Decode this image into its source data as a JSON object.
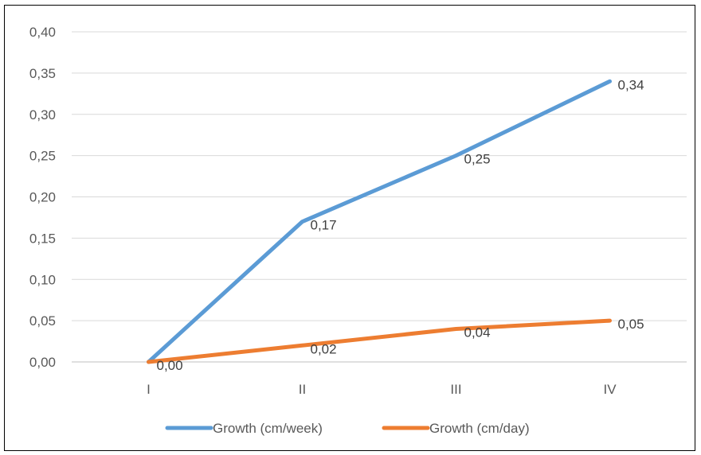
{
  "chart_data": {
    "type": "line",
    "title": "",
    "xlabel": "",
    "ylabel": "",
    "categories": [
      "I",
      "II",
      "III",
      "IV"
    ],
    "ylim": [
      0,
      0.4
    ],
    "yticks": [
      0.0,
      0.05,
      0.1,
      0.15,
      0.2,
      0.25,
      0.3,
      0.35,
      0.4
    ],
    "ytick_labels": [
      "0,00",
      "0,05",
      "0,10",
      "0,15",
      "0,20",
      "0,25",
      "0,30",
      "0,35",
      "0,40"
    ],
    "grid": true,
    "legend_position": "bottom",
    "series": [
      {
        "name": "Growth (cm/week)",
        "values": [
          0.0,
          0.17,
          0.25,
          0.34
        ],
        "labels": [
          "",
          "0,17",
          "0,25",
          "0,34"
        ],
        "color": "#5B9BD5"
      },
      {
        "name": "Growth (cm/day)",
        "values": [
          0.0,
          0.02,
          0.04,
          0.05
        ],
        "labels": [
          "0,00",
          "0,02",
          "0,04",
          "0,05"
        ],
        "color": "#ED7D31"
      }
    ]
  }
}
